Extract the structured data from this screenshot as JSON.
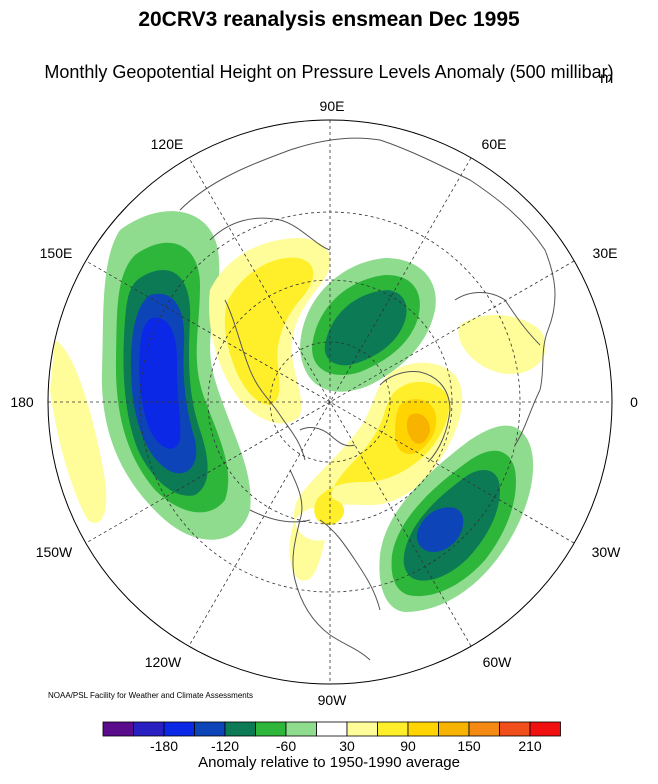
{
  "title": "20CRV3 reanalysis ensmean Dec 1995",
  "subtitle": "Monthly Geopotential Height on Pressure Levels Anomaly (500 millibar)",
  "units": "m",
  "credit": "NOAA/PSL Facility for Weather and Climate Assessments",
  "map": {
    "projection": "north polar stereographic",
    "longitude_labels": [
      "90E",
      "60E",
      "30E",
      "0",
      "30W",
      "60W",
      "90W",
      "120W",
      "150W",
      "180",
      "150E",
      "120E"
    ]
  },
  "colorbar": {
    "caption": "Anomaly relative to 1950-1990 average",
    "tick_labels": [
      "-180",
      "-120",
      "-60",
      "30",
      "90",
      "150",
      "210"
    ],
    "colors": [
      "#5a0c8c",
      "#2a1fc0",
      "#0a28e6",
      "#0d44b8",
      "#0b7a55",
      "#2eb63a",
      "#8fdc8f",
      "#ffffff",
      "#fffd9a",
      "#ffee2a",
      "#ffd400",
      "#f8b200",
      "#f48a14",
      "#f04e1a",
      "#f01010"
    ]
  },
  "colors": {
    "land_outline": "#555555",
    "grid": "#333333"
  }
}
